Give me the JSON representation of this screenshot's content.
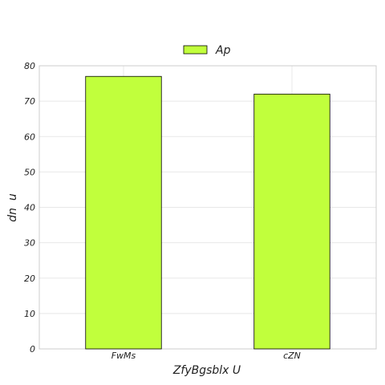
{
  "chart_data": {
    "type": "bar",
    "categories": [
      "FwMs",
      "cZN"
    ],
    "series": [
      {
        "name": "Ap",
        "values": [
          77,
          72
        ],
        "color": "#c1ff3c"
      }
    ],
    "xlabel": "ZfyBgsblx U",
    "ylabel": "dn  u",
    "ylim": [
      0,
      80
    ],
    "yticks": [
      0,
      10,
      20,
      30,
      40,
      50,
      60,
      70,
      80
    ],
    "grid": true,
    "legend_position": "top-center",
    "colors": {
      "bar_fill": "#c1ff3c",
      "bar_stroke": "#000000",
      "grid": "#e8e8e8",
      "axis": "#cccccc"
    }
  }
}
